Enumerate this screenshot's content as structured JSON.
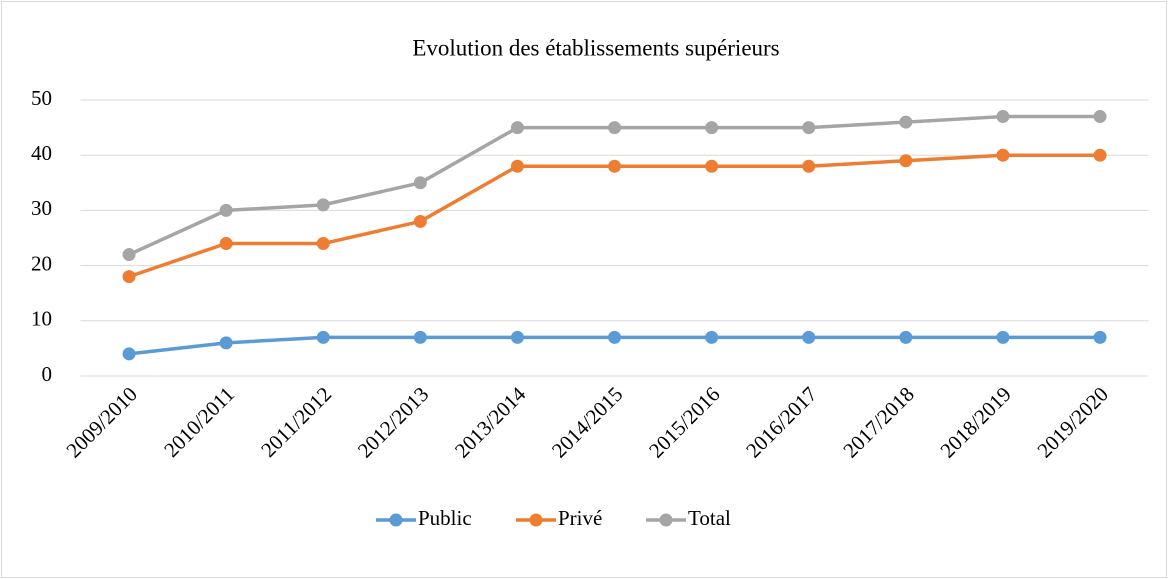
{
  "chart_data": {
    "type": "line",
    "title": "Evolution des établissements supérieurs",
    "categories": [
      "2009/2010",
      "2010/2011",
      "2011/2012",
      "2012/2013",
      "2013/2014",
      "2014/2015",
      "2015/2016",
      "2016/2017",
      "2017/2018",
      "2018/2019",
      "2019/2020"
    ],
    "series": [
      {
        "name": "Public",
        "color": "#5b9bd5",
        "values": [
          4,
          6,
          7,
          7,
          7,
          7,
          7,
          7,
          7,
          7,
          7
        ]
      },
      {
        "name": "Privé",
        "color": "#ed7d31",
        "values": [
          18,
          24,
          24,
          28,
          38,
          38,
          38,
          38,
          39,
          40,
          40
        ]
      },
      {
        "name": "Total",
        "color": "#a5a5a5",
        "values": [
          22,
          30,
          31,
          35,
          45,
          45,
          45,
          45,
          46,
          47,
          47
        ]
      }
    ],
    "ylim": [
      0,
      50
    ],
    "yticks": [
      0,
      10,
      20,
      30,
      40,
      50
    ],
    "grid": true,
    "legend": "bottom"
  }
}
